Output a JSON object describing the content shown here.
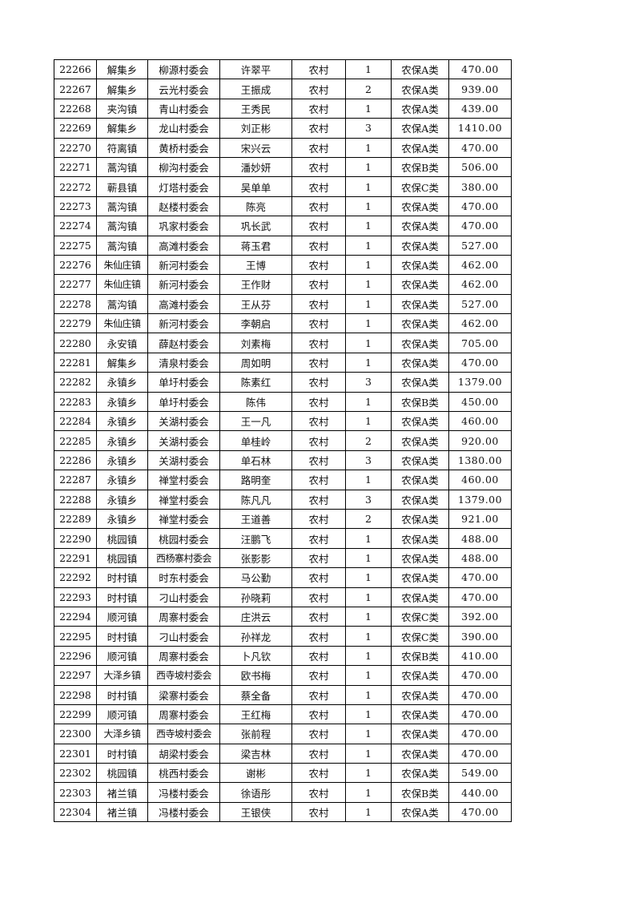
{
  "rows": [
    [
      "22266",
      "解集乡",
      "柳源村委会",
      "许翠平",
      "农村",
      "1",
      "农保A类",
      "470.00"
    ],
    [
      "22267",
      "解集乡",
      "云光村委会",
      "王振成",
      "农村",
      "2",
      "农保A类",
      "939.00"
    ],
    [
      "22268",
      "夹沟镇",
      "青山村委会",
      "王秀民",
      "农村",
      "1",
      "农保A类",
      "439.00"
    ],
    [
      "22269",
      "解集乡",
      "龙山村委会",
      "刘正彬",
      "农村",
      "3",
      "农保A类",
      "1410.00"
    ],
    [
      "22270",
      "符离镇",
      "黄桥村委会",
      "宋兴云",
      "农村",
      "1",
      "农保A类",
      "470.00"
    ],
    [
      "22271",
      "蒿沟镇",
      "柳沟村委会",
      "潘妙妍",
      "农村",
      "1",
      "农保B类",
      "506.00"
    ],
    [
      "22272",
      "蕲县镇",
      "灯塔村委会",
      "吴单单",
      "农村",
      "1",
      "农保C类",
      "380.00"
    ],
    [
      "22273",
      "蒿沟镇",
      "赵楼村委会",
      "陈亮",
      "农村",
      "1",
      "农保A类",
      "470.00"
    ],
    [
      "22274",
      "蒿沟镇",
      "巩家村委会",
      "巩长武",
      "农村",
      "1",
      "农保A类",
      "470.00"
    ],
    [
      "22275",
      "蒿沟镇",
      "高滩村委会",
      "蒋玉君",
      "农村",
      "1",
      "农保A类",
      "527.00"
    ],
    [
      "22276",
      "朱仙庄镇",
      "新河村委会",
      "王博",
      "农村",
      "1",
      "农保A类",
      "462.00"
    ],
    [
      "22277",
      "朱仙庄镇",
      "新河村委会",
      "王作财",
      "农村",
      "1",
      "农保A类",
      "462.00"
    ],
    [
      "22278",
      "蒿沟镇",
      "高滩村委会",
      "王从芬",
      "农村",
      "1",
      "农保A类",
      "527.00"
    ],
    [
      "22279",
      "朱仙庄镇",
      "新河村委会",
      "李朝启",
      "农村",
      "1",
      "农保A类",
      "462.00"
    ],
    [
      "22280",
      "永安镇",
      "薛赵村委会",
      "刘素梅",
      "农村",
      "1",
      "农保A类",
      "705.00"
    ],
    [
      "22281",
      "解集乡",
      "清泉村委会",
      "周如明",
      "农村",
      "1",
      "农保A类",
      "470.00"
    ],
    [
      "22282",
      "永镇乡",
      "单圩村委会",
      "陈素红",
      "农村",
      "3",
      "农保A类",
      "1379.00"
    ],
    [
      "22283",
      "永镇乡",
      "单圩村委会",
      "陈伟",
      "农村",
      "1",
      "农保B类",
      "450.00"
    ],
    [
      "22284",
      "永镇乡",
      "关湖村委会",
      "王一凡",
      "农村",
      "1",
      "农保A类",
      "460.00"
    ],
    [
      "22285",
      "永镇乡",
      "关湖村委会",
      "单桂岭",
      "农村",
      "2",
      "农保A类",
      "920.00"
    ],
    [
      "22286",
      "永镇乡",
      "关湖村委会",
      "单石林",
      "农村",
      "3",
      "农保A类",
      "1380.00"
    ],
    [
      "22287",
      "永镇乡",
      "禅堂村委会",
      "路明奎",
      "农村",
      "1",
      "农保A类",
      "460.00"
    ],
    [
      "22288",
      "永镇乡",
      "禅堂村委会",
      "陈凡凡",
      "农村",
      "3",
      "农保A类",
      "1379.00"
    ],
    [
      "22289",
      "永镇乡",
      "禅堂村委会",
      "王道善",
      "农村",
      "2",
      "农保A类",
      "921.00"
    ],
    [
      "22290",
      "桃园镇",
      "桃园村委会",
      "汪鹏飞",
      "农村",
      "1",
      "农保A类",
      "488.00"
    ],
    [
      "22291",
      "桃园镇",
      "西杨寨村委会",
      "张影影",
      "农村",
      "1",
      "农保A类",
      "488.00"
    ],
    [
      "22292",
      "时村镇",
      "时东村委会",
      "马公勤",
      "农村",
      "1",
      "农保A类",
      "470.00"
    ],
    [
      "22293",
      "时村镇",
      "刁山村委会",
      "孙晓莉",
      "农村",
      "1",
      "农保A类",
      "470.00"
    ],
    [
      "22294",
      "顺河镇",
      "周寨村委会",
      "庄洪云",
      "农村",
      "1",
      "农保C类",
      "392.00"
    ],
    [
      "22295",
      "时村镇",
      "刁山村委会",
      "孙祥龙",
      "农村",
      "1",
      "农保C类",
      "390.00"
    ],
    [
      "22296",
      "顺河镇",
      "周寨村委会",
      "卜凡钦",
      "农村",
      "1",
      "农保B类",
      "410.00"
    ],
    [
      "22297",
      "大泽乡镇",
      "西寺坡村委会",
      "欧书梅",
      "农村",
      "1",
      "农保A类",
      "470.00"
    ],
    [
      "22298",
      "时村镇",
      "梁寨村委会",
      "蔡全备",
      "农村",
      "1",
      "农保A类",
      "470.00"
    ],
    [
      "22299",
      "顺河镇",
      "周寨村委会",
      "王红梅",
      "农村",
      "1",
      "农保A类",
      "470.00"
    ],
    [
      "22300",
      "大泽乡镇",
      "西寺坡村委会",
      "张前程",
      "农村",
      "1",
      "农保A类",
      "470.00"
    ],
    [
      "22301",
      "时村镇",
      "胡梁村委会",
      "梁吉林",
      "农村",
      "1",
      "农保A类",
      "470.00"
    ],
    [
      "22302",
      "桃园镇",
      "桃西村委会",
      "谢彬",
      "农村",
      "1",
      "农保A类",
      "549.00"
    ],
    [
      "22303",
      "褚兰镇",
      "冯楼村委会",
      "徐语彤",
      "农村",
      "1",
      "农保B类",
      "440.00"
    ],
    [
      "22304",
      "褚兰镇",
      "冯楼村委会",
      "王银侠",
      "农村",
      "1",
      "农保A类",
      "470.00"
    ]
  ]
}
